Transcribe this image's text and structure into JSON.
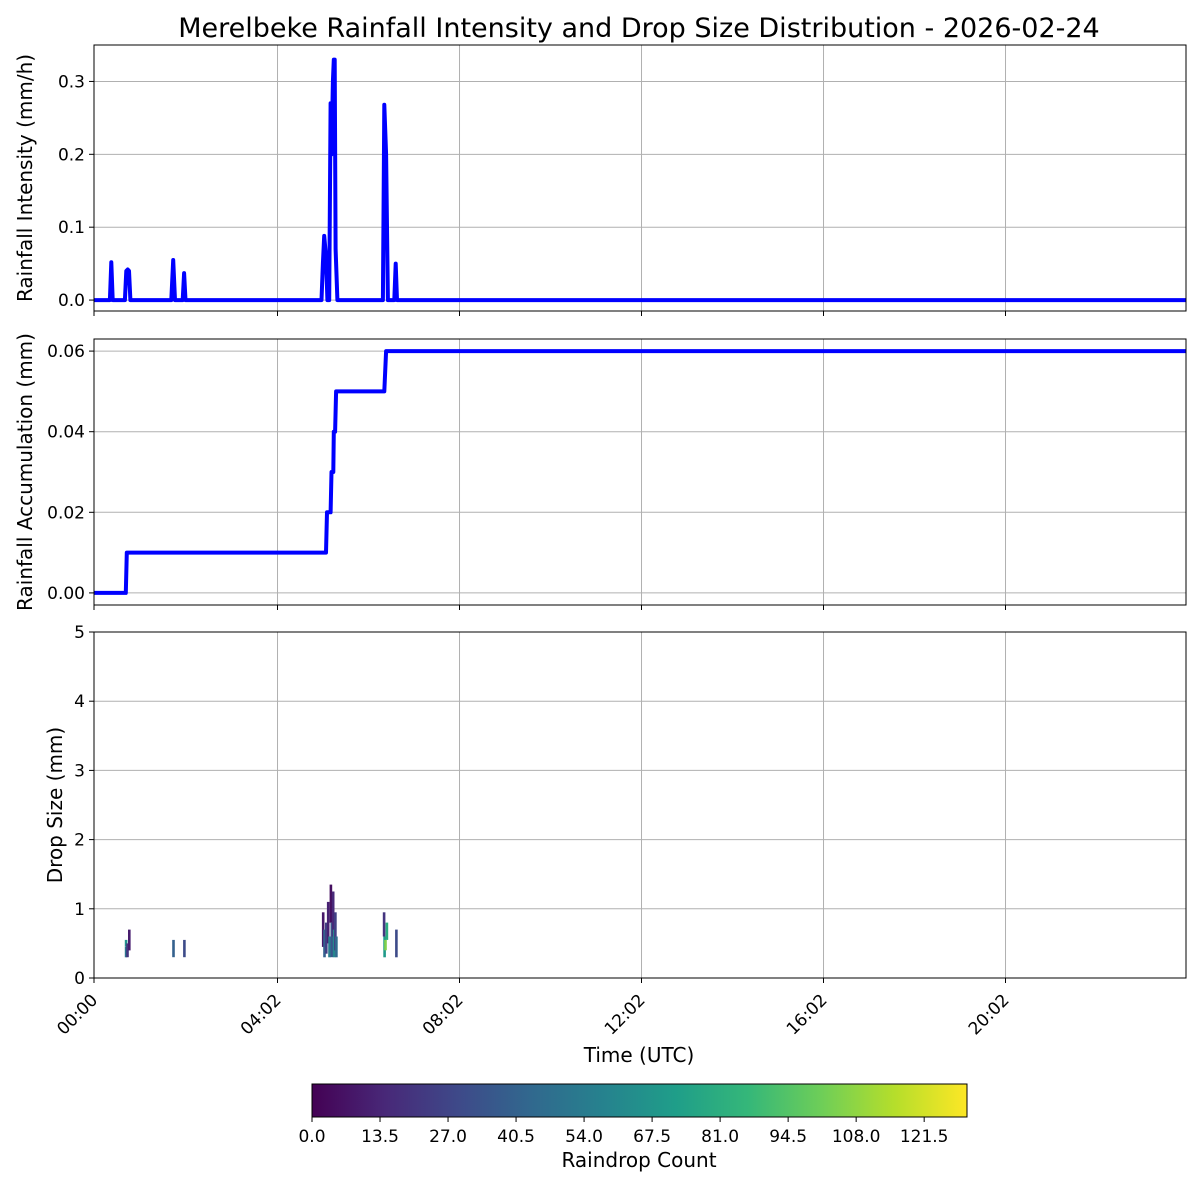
{
  "title": "Merelbeke Rainfall Intensity and Drop Size Distribution - 2026-02-24",
  "chart_data": [
    {
      "type": "line",
      "panel": "intensity",
      "ylabel": "Rainfall Intensity (mm/h)",
      "x_unit": "hours (UTC)",
      "xlim": [
        0,
        24
      ],
      "ylim": [
        -0.015,
        0.35
      ],
      "yticks": [
        "0.0",
        "0.1",
        "0.2",
        "0.3"
      ],
      "ytick_values": [
        0.0,
        0.1,
        0.2,
        0.3
      ],
      "grid": true,
      "points": [
        [
          0,
          0
        ],
        [
          0.35,
          0
        ],
        [
          0.38,
          0.052
        ],
        [
          0.41,
          0
        ],
        [
          0.68,
          0
        ],
        [
          0.71,
          0.04
        ],
        [
          0.74,
          0.042
        ],
        [
          0.77,
          0.04
        ],
        [
          0.8,
          0
        ],
        [
          1.7,
          0
        ],
        [
          1.74,
          0.055
        ],
        [
          1.78,
          0
        ],
        [
          1.95,
          0
        ],
        [
          1.98,
          0.037
        ],
        [
          2.01,
          0
        ],
        [
          5.0,
          0
        ],
        [
          5.03,
          0.05
        ],
        [
          5.06,
          0.088
        ],
        [
          5.1,
          0.06
        ],
        [
          5.13,
          0
        ],
        [
          5.17,
          0
        ],
        [
          5.2,
          0.27
        ],
        [
          5.22,
          0.2
        ],
        [
          5.25,
          0.3
        ],
        [
          5.27,
          0.33
        ],
        [
          5.29,
          0.33
        ],
        [
          5.31,
          0.07
        ],
        [
          5.35,
          0
        ],
        [
          6.35,
          0
        ],
        [
          6.38,
          0.268
        ],
        [
          6.42,
          0.2
        ],
        [
          6.46,
          0
        ],
        [
          6.6,
          0
        ],
        [
          6.63,
          0.05
        ],
        [
          6.66,
          0
        ],
        [
          24,
          0
        ]
      ]
    },
    {
      "type": "line",
      "panel": "accumulation",
      "ylabel": "Rainfall Accumulation (mm)",
      "x_unit": "hours (UTC)",
      "xlim": [
        0,
        24
      ],
      "ylim": [
        -0.003,
        0.063
      ],
      "yticks": [
        "0.00",
        "0.02",
        "0.04",
        "0.06"
      ],
      "ytick_values": [
        0.0,
        0.02,
        0.04,
        0.06
      ],
      "grid": true,
      "points": [
        [
          0,
          0
        ],
        [
          0.7,
          0
        ],
        [
          0.72,
          0.01
        ],
        [
          5.1,
          0.01
        ],
        [
          5.12,
          0.02
        ],
        [
          5.2,
          0.02
        ],
        [
          5.22,
          0.03
        ],
        [
          5.26,
          0.03
        ],
        [
          5.27,
          0.04
        ],
        [
          5.3,
          0.04
        ],
        [
          5.32,
          0.05
        ],
        [
          6.38,
          0.05
        ],
        [
          6.42,
          0.06
        ],
        [
          24,
          0.06
        ]
      ]
    },
    {
      "type": "heatmap",
      "panel": "drop-size",
      "ylabel": "Drop Size (mm)",
      "xlabel": "Time (UTC)",
      "xlim": [
        0,
        24
      ],
      "ylim": [
        0,
        5
      ],
      "yticks": [
        "0",
        "1",
        "2",
        "3",
        "4",
        "5"
      ],
      "ytick_values": [
        0,
        1,
        2,
        3,
        4,
        5
      ],
      "xticks": [
        "00:00",
        "04:02",
        "08:02",
        "12:02",
        "16:02",
        "20:02"
      ],
      "xtick_values": [
        0,
        4.0,
        8.0,
        12.0,
        16.0,
        20.0
      ],
      "grid": true,
      "cells": [
        [
          0.7,
          0.3,
          0.45,
          50
        ],
        [
          0.7,
          0.45,
          0.55,
          65
        ],
        [
          0.73,
          0.3,
          0.5,
          20
        ],
        [
          0.77,
          0.4,
          0.7,
          10
        ],
        [
          1.74,
          0.3,
          0.55,
          40
        ],
        [
          1.98,
          0.3,
          0.55,
          30
        ],
        [
          5.03,
          0.45,
          0.95,
          8
        ],
        [
          5.06,
          0.3,
          0.7,
          40
        ],
        [
          5.1,
          0.35,
          0.8,
          25
        ],
        [
          5.14,
          0.5,
          1.1,
          12
        ],
        [
          5.17,
          0.3,
          0.6,
          55
        ],
        [
          5.2,
          0.8,
          1.35,
          5
        ],
        [
          5.22,
          0.3,
          0.8,
          35
        ],
        [
          5.25,
          0.6,
          1.25,
          15
        ],
        [
          5.27,
          0.3,
          0.7,
          60
        ],
        [
          5.3,
          0.4,
          0.95,
          25
        ],
        [
          5.32,
          0.3,
          0.6,
          45
        ],
        [
          6.37,
          0.6,
          0.95,
          20
        ],
        [
          6.38,
          0.3,
          0.6,
          70
        ],
        [
          6.4,
          0.4,
          0.55,
          105
        ],
        [
          6.43,
          0.55,
          0.8,
          80
        ],
        [
          6.64,
          0.3,
          0.7,
          30
        ]
      ]
    }
  ],
  "colorbar": {
    "label": "Raindrop Count",
    "min": 0,
    "max": 130,
    "ticks": [
      "0.0",
      "13.5",
      "27.0",
      "40.5",
      "54.0",
      "67.5",
      "81.0",
      "94.5",
      "108.0",
      "121.5"
    ],
    "tick_values": [
      0,
      13.5,
      27,
      40.5,
      54,
      67.5,
      81,
      94.5,
      108,
      121.5
    ],
    "colormap": "viridis",
    "colors": [
      "#440154",
      "#482878",
      "#3e4989",
      "#31688e",
      "#26828e",
      "#1f9e89",
      "#35b779",
      "#6ece58",
      "#b5de2b",
      "#fde725"
    ]
  },
  "line_color": "#0000ff"
}
